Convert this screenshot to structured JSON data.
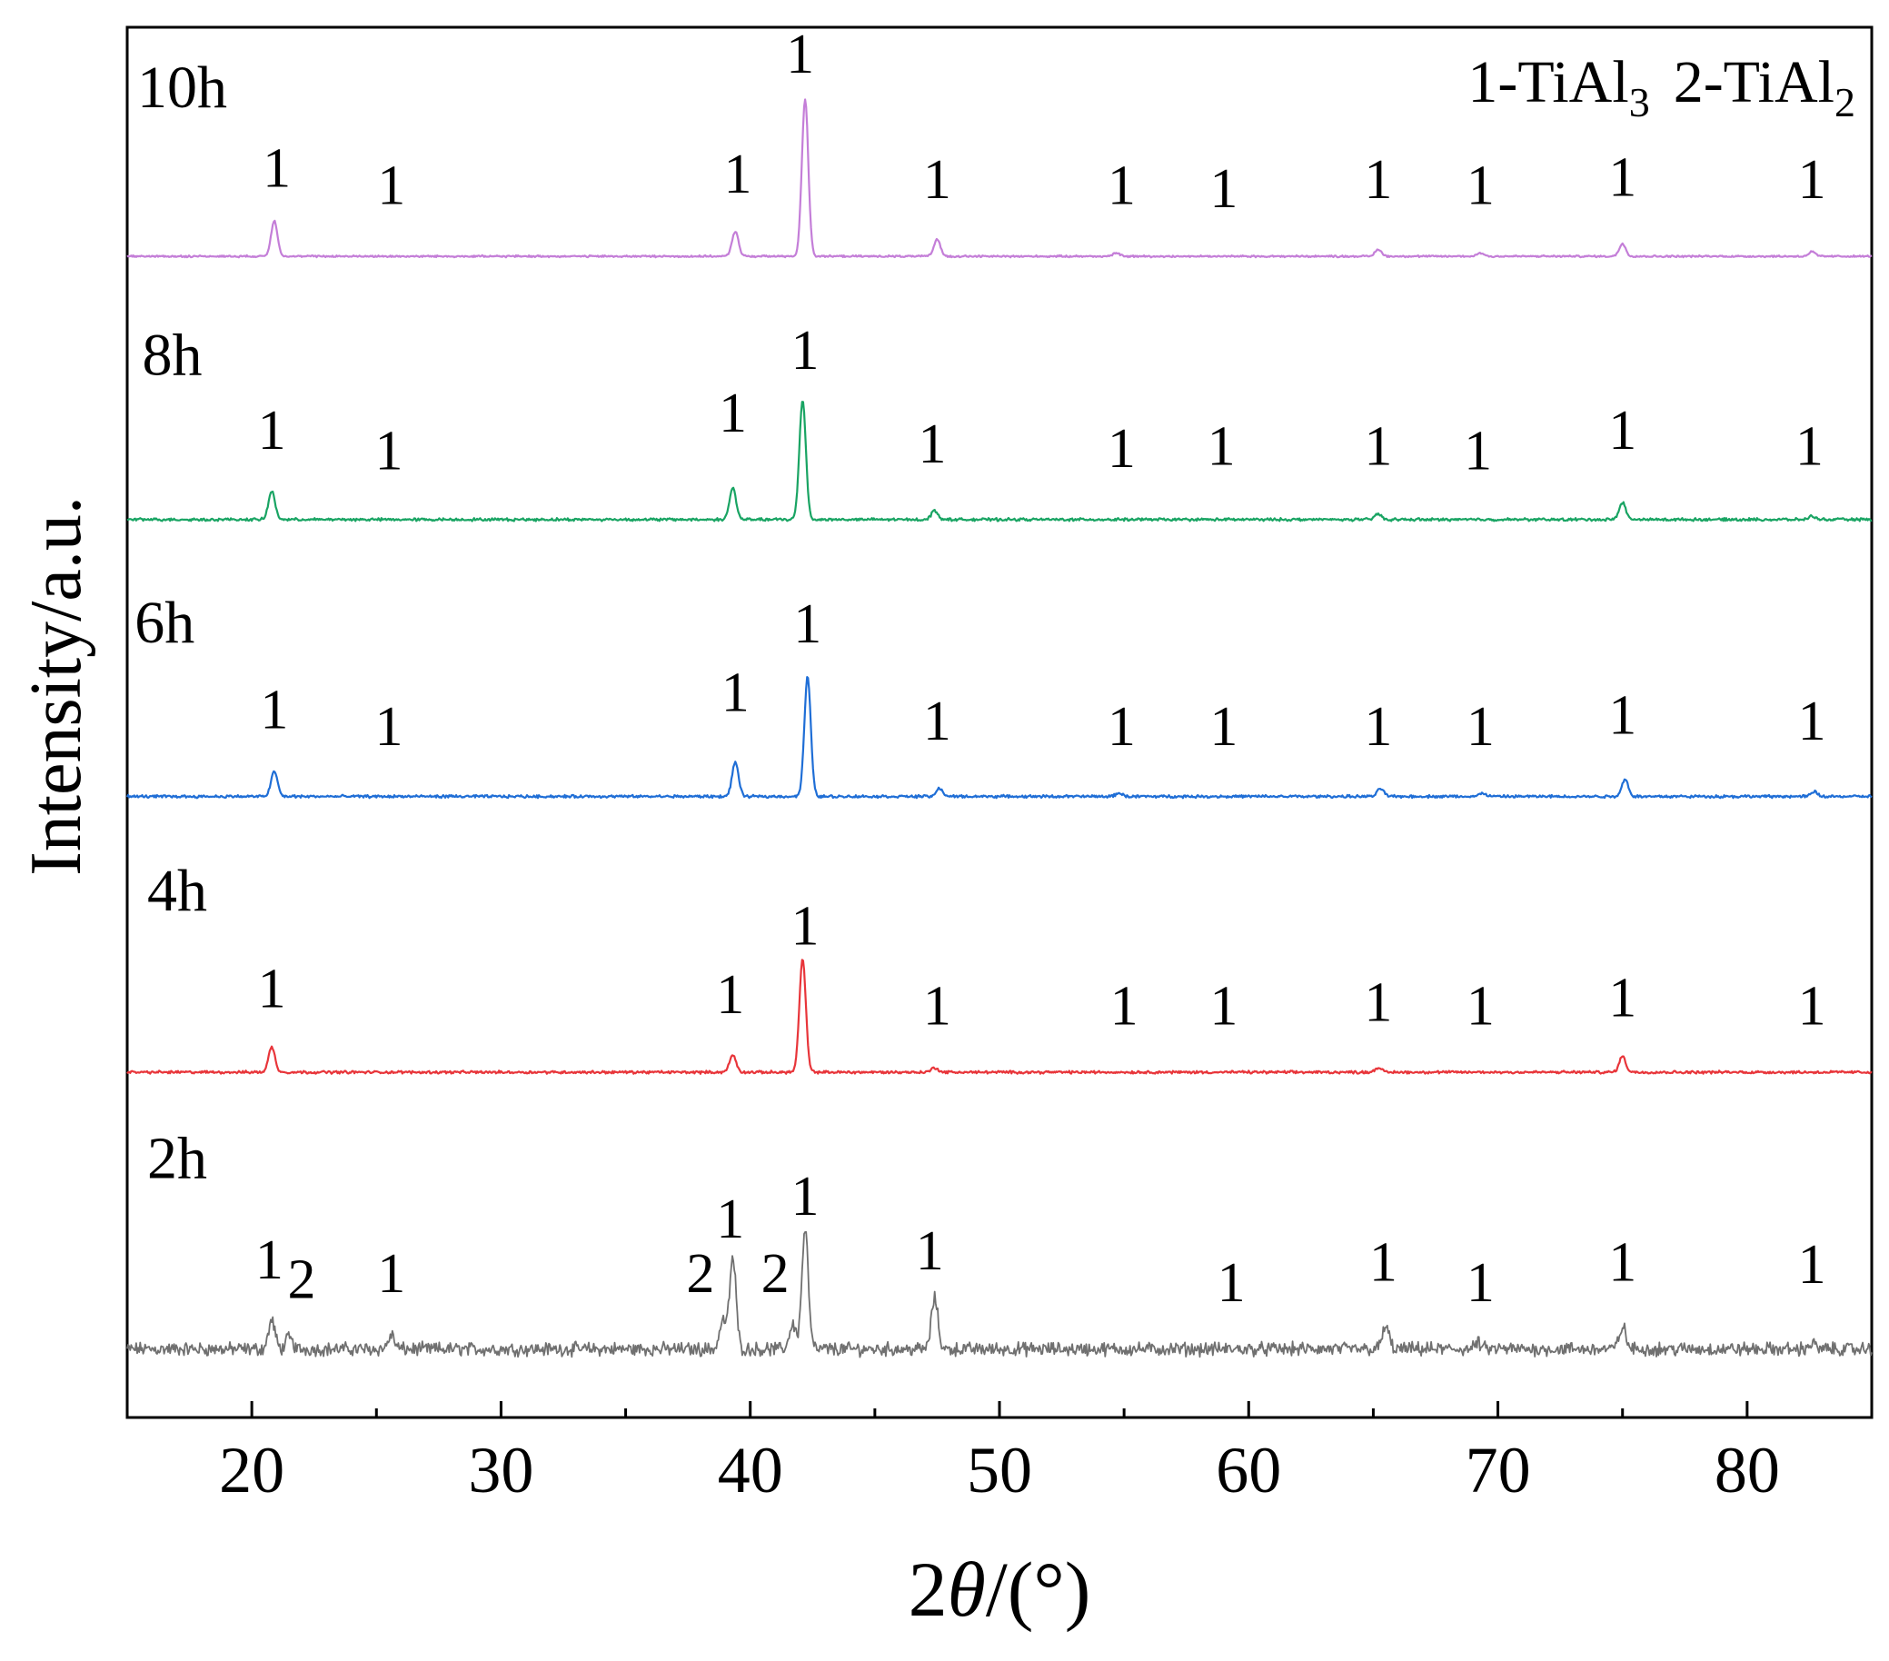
{
  "chart_data": {
    "type": "line",
    "xlabel_prefix": "2",
    "xlabel_theta": "θ",
    "xlabel_suffix": "/(°)",
    "ylabel": "Intensity/a.u.",
    "xlim": [
      15,
      85
    ],
    "x_ticks": [
      20,
      30,
      40,
      50,
      60,
      70,
      80
    ],
    "x_minor_ticks": [
      25,
      35,
      45,
      55,
      65,
      75
    ],
    "y_ticks": [],
    "grid": false,
    "legend": {
      "placement": "top-right",
      "entries": [
        {
          "prefix": "1-TiAl",
          "sub": "3"
        },
        {
          "prefix": "2-TiAl",
          "sub": "2"
        }
      ]
    },
    "series": [
      {
        "name": "2h",
        "color": "#707070",
        "offset": 1.0,
        "noise": 0.09,
        "width": 1.8,
        "peaks": [
          [
            20.8,
            0.25
          ],
          [
            21.5,
            0.1
          ],
          [
            25.6,
            0.12
          ],
          [
            38.9,
            0.25
          ],
          [
            39.3,
            0.8
          ],
          [
            41.7,
            0.22
          ],
          [
            42.2,
            1.05
          ],
          [
            47.4,
            0.45
          ],
          [
            65.5,
            0.2
          ],
          [
            69.2,
            0.05
          ],
          [
            75.0,
            0.2
          ],
          [
            82.6,
            0.05
          ]
        ],
        "labels": [
          {
            "x": 20.7,
            "y": 1.62,
            "text": "1"
          },
          {
            "x": 22.0,
            "y": 1.45,
            "text": "2"
          },
          {
            "x": 25.6,
            "y": 1.5,
            "text": "1"
          },
          {
            "x": 38.0,
            "y": 1.5,
            "text": "2"
          },
          {
            "x": 39.2,
            "y": 1.98,
            "text": "1"
          },
          {
            "x": 41.0,
            "y": 1.5,
            "text": "2"
          },
          {
            "x": 42.2,
            "y": 2.18,
            "text": "1"
          },
          {
            "x": 47.2,
            "y": 1.7,
            "text": "1"
          },
          {
            "x": 59.3,
            "y": 1.42,
            "text": "1"
          },
          {
            "x": 65.4,
            "y": 1.6,
            "text": "1"
          },
          {
            "x": 69.3,
            "y": 1.42,
            "text": "1"
          },
          {
            "x": 75.0,
            "y": 1.6,
            "text": "1"
          },
          {
            "x": 82.6,
            "y": 1.58,
            "text": "1"
          }
        ]
      },
      {
        "name": "4h",
        "color": "#e8353a",
        "offset": 3.43,
        "noise": 0.018,
        "width": 2.2,
        "peaks": [
          [
            20.8,
            0.22
          ],
          [
            39.3,
            0.15
          ],
          [
            42.1,
            0.99
          ],
          [
            47.4,
            0.04
          ],
          [
            65.2,
            0.04
          ],
          [
            75.0,
            0.14
          ]
        ],
        "labels": [
          {
            "x": 20.8,
            "y": 4.0,
            "text": "1"
          },
          {
            "x": 39.2,
            "y": 3.95,
            "text": "1"
          },
          {
            "x": 42.2,
            "y": 4.55,
            "text": "1"
          },
          {
            "x": 47.5,
            "y": 3.85,
            "text": "1"
          },
          {
            "x": 55.0,
            "y": 3.85,
            "text": "1"
          },
          {
            "x": 59.0,
            "y": 3.85,
            "text": "1"
          },
          {
            "x": 65.2,
            "y": 3.88,
            "text": "1"
          },
          {
            "x": 69.3,
            "y": 3.85,
            "text": "1"
          },
          {
            "x": 75.0,
            "y": 3.92,
            "text": "1"
          },
          {
            "x": 82.6,
            "y": 3.85,
            "text": "1"
          }
        ]
      },
      {
        "name": "6h",
        "color": "#1f6ed6",
        "offset": 5.85,
        "noise": 0.018,
        "width": 2.2,
        "peaks": [
          [
            20.9,
            0.22
          ],
          [
            39.4,
            0.3
          ],
          [
            42.3,
            1.05
          ],
          [
            47.6,
            0.07
          ],
          [
            54.8,
            0.03
          ],
          [
            65.3,
            0.07
          ],
          [
            69.4,
            0.03
          ],
          [
            75.1,
            0.15
          ],
          [
            82.7,
            0.04
          ]
        ],
        "labels": [
          {
            "x": 20.9,
            "y": 6.45,
            "text": "1"
          },
          {
            "x": 25.5,
            "y": 6.3,
            "text": "1"
          },
          {
            "x": 39.4,
            "y": 6.6,
            "text": "1"
          },
          {
            "x": 42.3,
            "y": 7.2,
            "text": "1"
          },
          {
            "x": 47.5,
            "y": 6.35,
            "text": "1"
          },
          {
            "x": 54.9,
            "y": 6.3,
            "text": "1"
          },
          {
            "x": 59.0,
            "y": 6.3,
            "text": "1"
          },
          {
            "x": 65.2,
            "y": 6.3,
            "text": "1"
          },
          {
            "x": 69.3,
            "y": 6.3,
            "text": "1"
          },
          {
            "x": 75.0,
            "y": 6.4,
            "text": "1"
          },
          {
            "x": 82.6,
            "y": 6.35,
            "text": "1"
          }
        ]
      },
      {
        "name": "8h",
        "color": "#19a463",
        "offset": 8.28,
        "noise": 0.018,
        "width": 2.2,
        "peaks": [
          [
            20.8,
            0.25
          ],
          [
            39.3,
            0.28
          ],
          [
            42.1,
            1.05
          ],
          [
            47.4,
            0.08
          ],
          [
            65.2,
            0.05
          ],
          [
            75.0,
            0.15
          ],
          [
            82.6,
            0.03
          ]
        ],
        "labels": [
          {
            "x": 20.8,
            "y": 8.9,
            "text": "1"
          },
          {
            "x": 25.5,
            "y": 8.72,
            "text": "1"
          },
          {
            "x": 39.3,
            "y": 9.05,
            "text": "1"
          },
          {
            "x": 42.2,
            "y": 9.6,
            "text": "1"
          },
          {
            "x": 47.3,
            "y": 8.78,
            "text": "1"
          },
          {
            "x": 54.9,
            "y": 8.74,
            "text": "1"
          },
          {
            "x": 58.9,
            "y": 8.76,
            "text": "1"
          },
          {
            "x": 65.2,
            "y": 8.76,
            "text": "1"
          },
          {
            "x": 69.2,
            "y": 8.72,
            "text": "1"
          },
          {
            "x": 75.0,
            "y": 8.9,
            "text": "1"
          },
          {
            "x": 82.5,
            "y": 8.76,
            "text": "1"
          }
        ]
      },
      {
        "name": "10h",
        "color": "#c47ed8",
        "offset": 10.59,
        "noise": 0.012,
        "width": 2.2,
        "peaks": [
          [
            20.9,
            0.31
          ],
          [
            39.4,
            0.22
          ],
          [
            42.2,
            1.38
          ],
          [
            47.5,
            0.15
          ],
          [
            54.7,
            0.03
          ],
          [
            65.2,
            0.06
          ],
          [
            69.3,
            0.03
          ],
          [
            75.0,
            0.11
          ],
          [
            82.6,
            0.04
          ]
        ],
        "labels": [
          {
            "x": 21.0,
            "y": 11.2,
            "text": "1"
          },
          {
            "x": 25.6,
            "y": 11.05,
            "text": "1"
          },
          {
            "x": 39.5,
            "y": 11.15,
            "text": "1"
          },
          {
            "x": 42.0,
            "y": 12.2,
            "text": "1"
          },
          {
            "x": 47.5,
            "y": 11.1,
            "text": "1"
          },
          {
            "x": 54.9,
            "y": 11.05,
            "text": "1"
          },
          {
            "x": 59.0,
            "y": 11.02,
            "text": "1"
          },
          {
            "x": 65.2,
            "y": 11.1,
            "text": "1"
          },
          {
            "x": 69.3,
            "y": 11.05,
            "text": "1"
          },
          {
            "x": 75.0,
            "y": 11.12,
            "text": "1"
          },
          {
            "x": 82.6,
            "y": 11.1,
            "text": "1"
          }
        ]
      }
    ],
    "series_labels": [
      {
        "series": "2h",
        "x": 15.8,
        "y": 2.5
      },
      {
        "series": "4h",
        "x": 15.8,
        "y": 4.85
      },
      {
        "series": "6h",
        "x": 15.3,
        "y": 7.2
      },
      {
        "series": "8h",
        "x": 15.6,
        "y": 9.55
      },
      {
        "series": "10h",
        "x": 15.4,
        "y": 11.9
      }
    ],
    "ylim": [
      0.4,
      12.6
    ]
  }
}
